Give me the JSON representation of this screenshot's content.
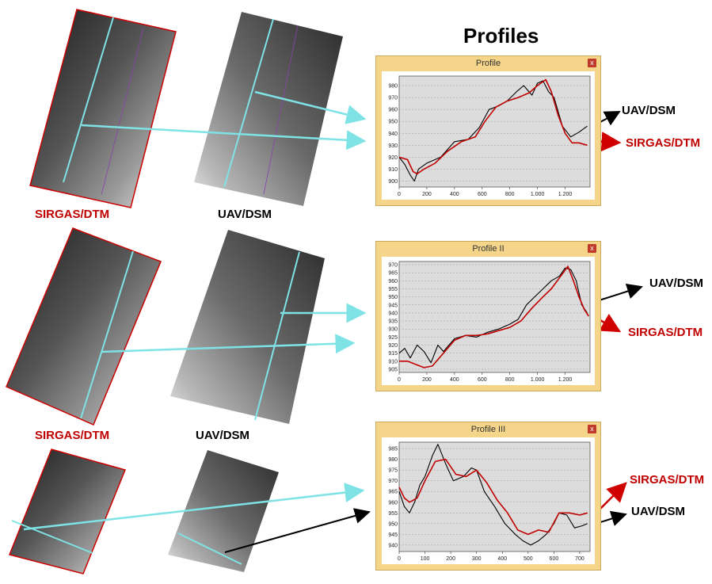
{
  "heading": "Profiles",
  "labels": {
    "sirgas": "SIRGAS/DTM",
    "uav": "UAV/DSM"
  },
  "colors": {
    "uav_series": "#000000",
    "sirgas_series": "#c00000",
    "section_line": "#7fe3e6",
    "window_frame": "#f4d58a",
    "plot_bg": "#dcdcdc"
  },
  "chart_data": [
    {
      "type": "line",
      "title": "Profile",
      "xlim": [
        0,
        1380
      ],
      "ylim": [
        895,
        988
      ],
      "xticks": [
        0,
        200,
        400,
        600,
        800,
        1000,
        1200
      ],
      "xtick_labels": [
        "0",
        "200",
        "400",
        "600",
        "800",
        "1.000",
        "1.200"
      ],
      "yticks": [
        900,
        910,
        920,
        930,
        940,
        950,
        960,
        970,
        980
      ],
      "grid": true,
      "series": [
        {
          "name": "UAV/DSM",
          "color": "#000000",
          "x": [
            0,
            40,
            80,
            110,
            140,
            200,
            300,
            400,
            500,
            580,
            650,
            720,
            780,
            850,
            900,
            960,
            1000,
            1040,
            1080,
            1120,
            1180,
            1240,
            1300,
            1360
          ],
          "y": [
            920,
            914,
            905,
            900,
            910,
            915,
            920,
            933,
            935,
            945,
            960,
            963,
            967,
            975,
            980,
            972,
            982,
            984,
            975,
            970,
            946,
            937,
            941,
            946
          ]
        },
        {
          "name": "SIRGAS/DTM",
          "color": "#c00000",
          "x": [
            0,
            60,
            100,
            130,
            180,
            260,
            350,
            450,
            550,
            620,
            700,
            780,
            860,
            940,
            1000,
            1060,
            1100,
            1150,
            1200,
            1250,
            1300,
            1360
          ],
          "y": [
            920,
            918,
            908,
            906,
            910,
            915,
            925,
            933,
            937,
            950,
            962,
            967,
            970,
            974,
            980,
            985,
            975,
            955,
            940,
            932,
            932,
            930
          ]
        }
      ]
    },
    {
      "type": "line",
      "title": "Profile II",
      "xlim": [
        0,
        1380
      ],
      "ylim": [
        903,
        972
      ],
      "xticks": [
        0,
        200,
        400,
        600,
        800,
        1000,
        1200
      ],
      "xtick_labels": [
        "0",
        "200",
        "400",
        "600",
        "800",
        "1.000",
        "1.200"
      ],
      "yticks": [
        905,
        910,
        915,
        920,
        925,
        930,
        935,
        940,
        945,
        950,
        955,
        960,
        965,
        970
      ],
      "grid": true,
      "series": [
        {
          "name": "UAV/DSM",
          "color": "#000000",
          "x": [
            0,
            40,
            80,
            130,
            180,
            230,
            280,
            320,
            400,
            480,
            560,
            640,
            720,
            800,
            860,
            920,
            980,
            1040,
            1100,
            1160,
            1200,
            1240,
            1280,
            1320,
            1360
          ],
          "y": [
            915,
            918,
            912,
            920,
            916,
            909,
            920,
            916,
            924,
            926,
            925,
            928,
            930,
            933,
            936,
            945,
            950,
            955,
            960,
            963,
            968,
            967,
            960,
            945,
            940
          ]
        },
        {
          "name": "SIRGAS/DTM",
          "color": "#c00000",
          "x": [
            0,
            60,
            120,
            180,
            240,
            320,
            400,
            480,
            560,
            640,
            720,
            800,
            880,
            960,
            1040,
            1100,
            1160,
            1220,
            1260,
            1300,
            1340,
            1370
          ],
          "y": [
            910,
            910,
            908,
            906,
            907,
            915,
            923,
            926,
            926,
            927,
            929,
            931,
            935,
            943,
            950,
            955,
            962,
            969,
            960,
            950,
            942,
            938
          ]
        }
      ]
    },
    {
      "type": "line",
      "title": "Profile III",
      "xlim": [
        0,
        740
      ],
      "ylim": [
        937,
        988
      ],
      "xticks": [
        0,
        100,
        200,
        300,
        400,
        500,
        600,
        700
      ],
      "xtick_labels": [
        "0",
        "100",
        "200",
        "300",
        "400",
        "500",
        "600",
        "700"
      ],
      "yticks": [
        940,
        945,
        950,
        955,
        960,
        965,
        970,
        975,
        980,
        985
      ],
      "grid": true,
      "series": [
        {
          "name": "UAV/DSM",
          "color": "#000000",
          "x": [
            0,
            20,
            40,
            60,
            80,
            100,
            130,
            150,
            180,
            210,
            250,
            280,
            300,
            330,
            370,
            410,
            450,
            480,
            510,
            540,
            570,
            600,
            620,
            650,
            680,
            710,
            730
          ],
          "y": [
            965,
            958,
            955,
            960,
            968,
            972,
            982,
            987,
            978,
            970,
            972,
            976,
            975,
            965,
            958,
            950,
            945,
            942,
            940,
            942,
            945,
            950,
            955,
            954,
            948,
            949,
            950
          ]
        },
        {
          "name": "SIRGAS/DTM",
          "color": "#c00000",
          "x": [
            0,
            20,
            40,
            70,
            100,
            140,
            180,
            220,
            260,
            300,
            340,
            380,
            420,
            460,
            500,
            540,
            580,
            620,
            660,
            700,
            730
          ],
          "y": [
            967,
            962,
            960,
            962,
            970,
            979,
            980,
            973,
            972,
            975,
            969,
            961,
            955,
            947,
            945,
            947,
            946,
            955,
            955,
            954,
            955
          ]
        }
      ]
    }
  ]
}
